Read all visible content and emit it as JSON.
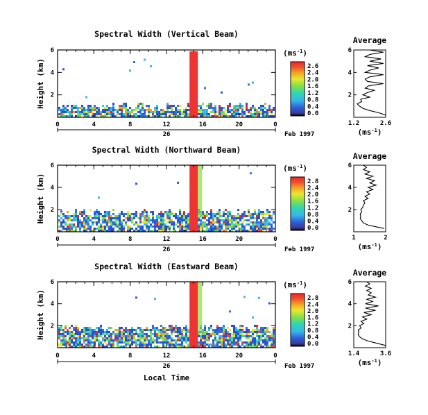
{
  "chart_data": [
    {
      "type": "heatmap",
      "title": "Spectral Width (Vertical Beam)",
      "ylabel": "Height (km)",
      "colorbar_label": "(ms",
      "colorbar_exp": "-1",
      "colorbar_ticks": [
        "2.6",
        "2.4",
        "2.0",
        "1.6",
        "1.2",
        "0.8",
        "0.4",
        "0.0"
      ],
      "x_ticks": [
        "0",
        "4",
        "8",
        "12",
        "16",
        "20",
        "0"
      ],
      "day_label": "26",
      "date_label": "Feb 1997",
      "ylim": [
        0,
        6
      ],
      "y_ticks": [
        "6",
        "4",
        "2"
      ],
      "average": {
        "title": "Average",
        "xlabel": "(ms",
        "xlabel_exp": "-1",
        "x_ticks": [
          "1.2",
          "2.6"
        ],
        "y_ticks": [
          "6",
          "4",
          "2"
        ],
        "xlim": [
          1.2,
          2.6
        ],
        "profile": [
          [
            2.6,
            0.2
          ],
          [
            2.3,
            0.4
          ],
          [
            1.9,
            0.6
          ],
          [
            1.6,
            0.8
          ],
          [
            1.45,
            1.0
          ],
          [
            1.35,
            1.2
          ],
          [
            1.55,
            1.4
          ],
          [
            1.5,
            1.6
          ],
          [
            1.9,
            1.8
          ],
          [
            1.6,
            2.0
          ],
          [
            1.8,
            2.2
          ],
          [
            2.1,
            2.4
          ],
          [
            1.7,
            2.6
          ],
          [
            1.85,
            2.8
          ],
          [
            2.5,
            3.0
          ],
          [
            1.8,
            3.2
          ],
          [
            1.7,
            3.4
          ],
          [
            1.9,
            3.6
          ],
          [
            2.5,
            3.8
          ],
          [
            1.7,
            4.0
          ],
          [
            1.9,
            4.2
          ],
          [
            2.3,
            4.4
          ],
          [
            1.8,
            4.6
          ],
          [
            2.5,
            4.8
          ],
          [
            1.9,
            5.0
          ],
          [
            2.4,
            5.2
          ],
          [
            1.7,
            5.4
          ],
          [
            1.9,
            5.6
          ],
          [
            2.5,
            5.8
          ],
          [
            1.9,
            6.0
          ]
        ]
      }
    },
    {
      "type": "heatmap",
      "title": "Spectral Width (Northward Beam)",
      "ylabel": "Height (km)",
      "colorbar_label": "(ms",
      "colorbar_exp": "-1",
      "colorbar_ticks": [
        "2.8",
        "2.4",
        "2.0",
        "1.6",
        "1.2",
        "0.8",
        "0.4",
        "0.0"
      ],
      "x_ticks": [
        "0",
        "4",
        "8",
        "12",
        "16",
        "20",
        "0"
      ],
      "day_label": "26",
      "date_label": "Feb 1997",
      "ylim": [
        0,
        6
      ],
      "y_ticks": [
        "6",
        "4",
        "2"
      ],
      "average": {
        "title": "Average",
        "xlabel": "(ms",
        "xlabel_exp": "-1",
        "x_ticks": [
          "1",
          "2"
        ],
        "y_ticks": [
          "6",
          "4",
          "2"
        ],
        "xlim": [
          1,
          2
        ],
        "profile": [
          [
            1.95,
            0.3
          ],
          [
            1.7,
            0.45
          ],
          [
            1.45,
            0.6
          ],
          [
            1.3,
            0.8
          ],
          [
            1.25,
            1.0
          ],
          [
            1.2,
            1.2
          ],
          [
            1.22,
            1.4
          ],
          [
            1.2,
            1.6
          ],
          [
            1.25,
            1.8
          ],
          [
            1.22,
            2.0
          ],
          [
            1.28,
            2.2
          ],
          [
            1.3,
            2.4
          ],
          [
            1.35,
            2.6
          ],
          [
            1.3,
            2.8
          ],
          [
            1.45,
            3.0
          ],
          [
            1.35,
            3.2
          ],
          [
            1.5,
            3.4
          ],
          [
            1.4,
            3.6
          ],
          [
            1.6,
            3.8
          ],
          [
            1.45,
            4.0
          ],
          [
            1.7,
            4.2
          ],
          [
            1.5,
            4.4
          ],
          [
            1.65,
            4.6
          ],
          [
            1.4,
            4.8
          ],
          [
            1.6,
            5.0
          ],
          [
            1.35,
            5.2
          ],
          [
            1.5,
            5.4
          ],
          [
            1.3,
            5.6
          ],
          [
            1.4,
            5.8
          ],
          [
            1.3,
            6.0
          ]
        ]
      }
    },
    {
      "type": "heatmap",
      "title": "Spectral Width (Eastward Beam)",
      "ylabel": "Height (km)",
      "colorbar_label": "(ms",
      "colorbar_exp": "-1",
      "colorbar_ticks": [
        "2.8",
        "2.4",
        "2.0",
        "1.6",
        "1.2",
        "0.8",
        "0.4",
        "0.0"
      ],
      "x_ticks": [
        "0",
        "4",
        "8",
        "12",
        "16",
        "20",
        "0"
      ],
      "day_label": "26",
      "date_label": "Feb 1997",
      "xlabel": "Local Time",
      "ylim": [
        0,
        6
      ],
      "y_ticks": [
        "6",
        "4",
        "2"
      ],
      "average": {
        "title": "Average",
        "xlabel": "(ms",
        "xlabel_exp": "-1",
        "x_ticks": [
          "1.4",
          "3.6"
        ],
        "y_ticks": [
          "6",
          "4",
          "2"
        ],
        "xlim": [
          1.4,
          3.6
        ],
        "profile": [
          [
            3.6,
            0.2
          ],
          [
            3.0,
            0.4
          ],
          [
            2.4,
            0.6
          ],
          [
            2.0,
            0.8
          ],
          [
            1.8,
            1.0
          ],
          [
            1.7,
            1.2
          ],
          [
            1.75,
            1.4
          ],
          [
            1.7,
            1.6
          ],
          [
            1.9,
            1.8
          ],
          [
            1.8,
            2.0
          ],
          [
            2.1,
            2.2
          ],
          [
            1.9,
            2.4
          ],
          [
            2.3,
            2.6
          ],
          [
            2.0,
            2.8
          ],
          [
            2.6,
            3.0
          ],
          [
            2.1,
            3.2
          ],
          [
            2.9,
            3.4
          ],
          [
            2.2,
            3.6
          ],
          [
            3.1,
            3.8
          ],
          [
            2.2,
            4.0
          ],
          [
            2.7,
            4.2
          ],
          [
            2.3,
            4.4
          ],
          [
            2.9,
            4.6
          ],
          [
            2.4,
            4.8
          ],
          [
            2.6,
            5.0
          ],
          [
            2.3,
            5.2
          ],
          [
            2.6,
            5.4
          ],
          [
            2.2,
            5.6
          ],
          [
            2.5,
            5.8
          ],
          [
            2.3,
            6.0
          ]
        ]
      }
    }
  ]
}
